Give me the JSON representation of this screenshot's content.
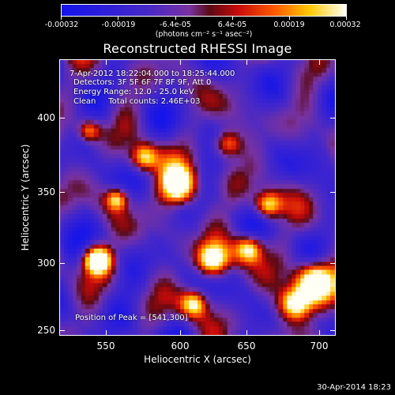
{
  "colorbar": {
    "tick_labels": [
      "-0.00032",
      "-0.00019",
      "-6.4e-05",
      "6.4e-05",
      "0.00019",
      "0.00032"
    ],
    "units": "(photons cm⁻² s⁻¹ asec⁻²)"
  },
  "title": "Reconstructed RHESSI Image",
  "info": {
    "time": "7-Apr-2012 18:22:04.000 to 18:25:44.000",
    "detectors": "Detectors: 3F 5F 6F 7F 8F 9F, Att 0",
    "energy": "Energy Range: 12.0 - 25.0 keV",
    "clean": "Clean     Total counts: 2.46E+03",
    "peak": "Position of Peak = [541,300]"
  },
  "axes": {
    "xlabel": "Heliocentric X (arcsec)",
    "ylabel": "Heliocentric Y (arcsec)",
    "xticks": [
      "550",
      "600",
      "650",
      "700"
    ],
    "yticks": [
      "400",
      "350",
      "300",
      "250"
    ]
  },
  "timestamp": "30-Apr-2014 18:23"
}
